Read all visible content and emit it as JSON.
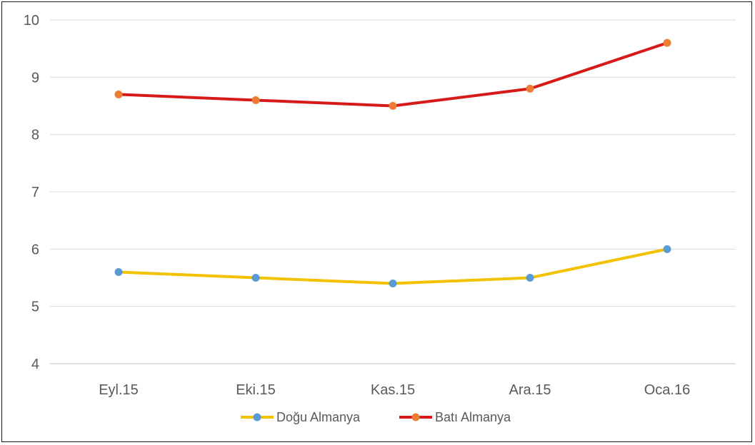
{
  "chart_data": {
    "type": "line",
    "categories": [
      "Eyl.15",
      "Eki.15",
      "Kas.15",
      "Ara.15",
      "Oca.16"
    ],
    "series": [
      {
        "name": "Doğu Almanya",
        "values": [
          5.6,
          5.5,
          5.4,
          5.5,
          6.0
        ],
        "line_color": "#f2c200",
        "marker_color": "#5b9bd5"
      },
      {
        "name": "Batı Almanya",
        "values": [
          8.7,
          8.6,
          8.5,
          8.8,
          9.6
        ],
        "line_color": "#d61a1a",
        "marker_color": "#ed7d31"
      }
    ],
    "ylim": [
      4,
      10
    ],
    "yticks": [
      "4",
      "5",
      "6",
      "7",
      "8",
      "9",
      "10"
    ],
    "grid": true,
    "legend_position": "bottom",
    "title": "",
    "xlabel": "",
    "ylabel": ""
  }
}
